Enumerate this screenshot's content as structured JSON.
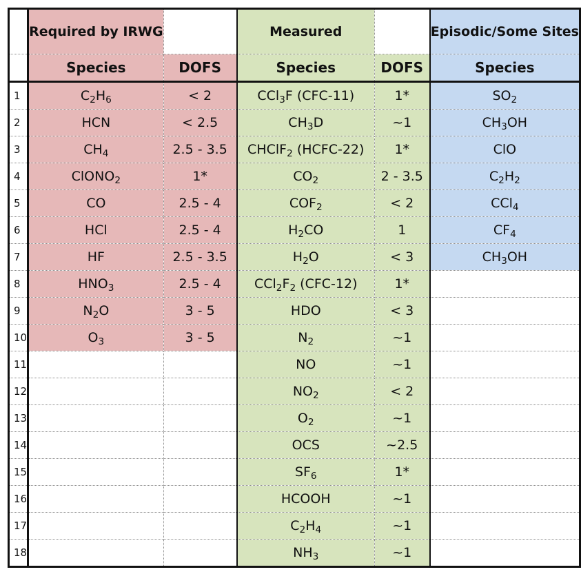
{
  "headers": {
    "group_required": "Required by IRWG",
    "group_measured": "Measured",
    "group_episodic": "Episodic/Some Sites",
    "species": "Species",
    "dofs": "DOFS"
  },
  "rows": [
    {
      "n": "1",
      "req_species": "C2H6",
      "req_dofs": "< 2",
      "meas_species": "CCl3F (CFC-11)",
      "meas_dofs": "1*",
      "epi_species": "SO2"
    },
    {
      "n": "2",
      "req_species": "HCN",
      "req_dofs": "< 2.5",
      "meas_species": "CH3D",
      "meas_dofs": "~1",
      "epi_species": "CH3OH"
    },
    {
      "n": "3",
      "req_species": "CH4",
      "req_dofs": "2.5 - 3.5",
      "meas_species": "CHClF2 (HCFC-22)",
      "meas_dofs": "1*",
      "epi_species": "ClO"
    },
    {
      "n": "4",
      "req_species": "ClONO2",
      "req_dofs": "1*",
      "meas_species": "CO2",
      "meas_dofs": "2 - 3.5",
      "epi_species": "C2H2"
    },
    {
      "n": "5",
      "req_species": "CO",
      "req_dofs": "2.5 - 4",
      "meas_species": "COF2",
      "meas_dofs": "< 2",
      "epi_species": "CCl4"
    },
    {
      "n": "6",
      "req_species": "HCl",
      "req_dofs": "2.5 - 4",
      "meas_species": "H2CO",
      "meas_dofs": "1",
      "epi_species": "CF4"
    },
    {
      "n": "7",
      "req_species": "HF",
      "req_dofs": "2.5 - 3.5",
      "meas_species": "H2O",
      "meas_dofs": "< 3",
      "epi_species": "CH3OH"
    },
    {
      "n": "8",
      "req_species": "HNO3",
      "req_dofs": "2.5 - 4",
      "meas_species": "CCl2F2 (CFC-12)",
      "meas_dofs": "1*",
      "epi_species": ""
    },
    {
      "n": "9",
      "req_species": "N2O",
      "req_dofs": "3 - 5",
      "meas_species": "HDO",
      "meas_dofs": "< 3",
      "epi_species": ""
    },
    {
      "n": "10",
      "req_species": "O3",
      "req_dofs": "3 - 5",
      "meas_species": "N2",
      "meas_dofs": "~1",
      "epi_species": ""
    },
    {
      "n": "11",
      "req_species": "",
      "req_dofs": "",
      "meas_species": "NO",
      "meas_dofs": "~1",
      "epi_species": ""
    },
    {
      "n": "12",
      "req_species": "",
      "req_dofs": "",
      "meas_species": "NO2",
      "meas_dofs": "< 2",
      "epi_species": ""
    },
    {
      "n": "13",
      "req_species": "",
      "req_dofs": "",
      "meas_species": "O2",
      "meas_dofs": "~1",
      "epi_species": ""
    },
    {
      "n": "14",
      "req_species": "",
      "req_dofs": "",
      "meas_species": "OCS",
      "meas_dofs": "~2.5",
      "epi_species": ""
    },
    {
      "n": "15",
      "req_species": "",
      "req_dofs": "",
      "meas_species": "SF6",
      "meas_dofs": "1*",
      "epi_species": ""
    },
    {
      "n": "16",
      "req_species": "",
      "req_dofs": "",
      "meas_species": "HCOOH",
      "meas_dofs": "~1",
      "epi_species": ""
    },
    {
      "n": "17",
      "req_species": "",
      "req_dofs": "",
      "meas_species": "C2H4",
      "meas_dofs": "~1",
      "epi_species": ""
    },
    {
      "n": "18",
      "req_species": "",
      "req_dofs": "",
      "meas_species": "NH3",
      "meas_dofs": "~1",
      "epi_species": ""
    }
  ],
  "colors": {
    "required": "#e6b8b8",
    "measured": "#d7e4bd",
    "episodic": "#c5d9f1"
  }
}
